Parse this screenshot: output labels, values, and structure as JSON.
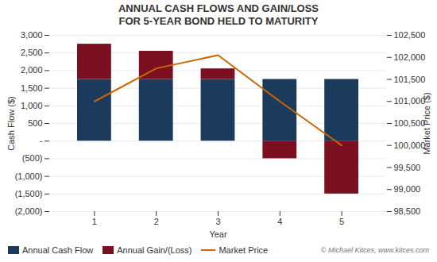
{
  "chart_data": {
    "type": "bar",
    "title": "ANNUAL CASH FLOWS AND GAIN/LOSS\nFOR 5-YEAR BOND HELD TO MATURITY",
    "categories": [
      "1",
      "2",
      "3",
      "4",
      "5"
    ],
    "x_label": "Year",
    "y_label": "Cash Flow ($)",
    "y2_label": "Market Price ($)",
    "stacked": true,
    "grid": true,
    "legend": "lower left",
    "series": [
      {
        "name": "Annual Cash Flow",
        "color": "#1b3a5c",
        "values": [
          1750,
          1750,
          1750,
          1750,
          1750
        ]
      },
      {
        "name": "Annual Gain/(Loss)",
        "color": "#7a1020",
        "values": [
          1000,
          800,
          300,
          -500,
          -1500
        ]
      },
      {
        "name": "Market Price",
        "type": "line",
        "axis": "y2",
        "color": "#cc6600",
        "values": [
          101000,
          101750,
          102050,
          101000,
          100000
        ]
      }
    ],
    "ylim": [
      -2000,
      3000
    ],
    "yticks": [
      {
        "value": -2000,
        "label": "(2,000)"
      },
      {
        "value": -1500,
        "label": "(1,500)"
      },
      {
        "value": -1000,
        "label": "(1,000)"
      },
      {
        "value": -500,
        "label": "(500)"
      },
      {
        "value": 0,
        "label": "-"
      },
      500,
      {
        "value": 1000,
        "label": "1,000"
      },
      {
        "value": 1500,
        "label": "1,500"
      },
      {
        "value": 2000,
        "label": "2,000"
      },
      {
        "value": 2500,
        "label": "2,500"
      },
      {
        "value": 3000,
        "label": "3,000"
      }
    ],
    "y2lim": [
      98500,
      102500
    ],
    "y2ticks": [
      {
        "value": 98500,
        "label": "98,500"
      },
      {
        "value": 99000,
        "label": "99,000"
      },
      {
        "value": 99500,
        "label": "99,500"
      },
      {
        "value": 100000,
        "label": "100,000"
      },
      {
        "value": 100500,
        "label": "100,500"
      },
      {
        "value": 101000,
        "label": "101,000"
      },
      {
        "value": 101500,
        "label": "101,500"
      },
      {
        "value": 102000,
        "label": "102,000"
      },
      {
        "value": 102500,
        "label": "102,500"
      }
    ],
    "annotations": [
      "© Michael Kitces, www.kitces.com"
    ]
  }
}
